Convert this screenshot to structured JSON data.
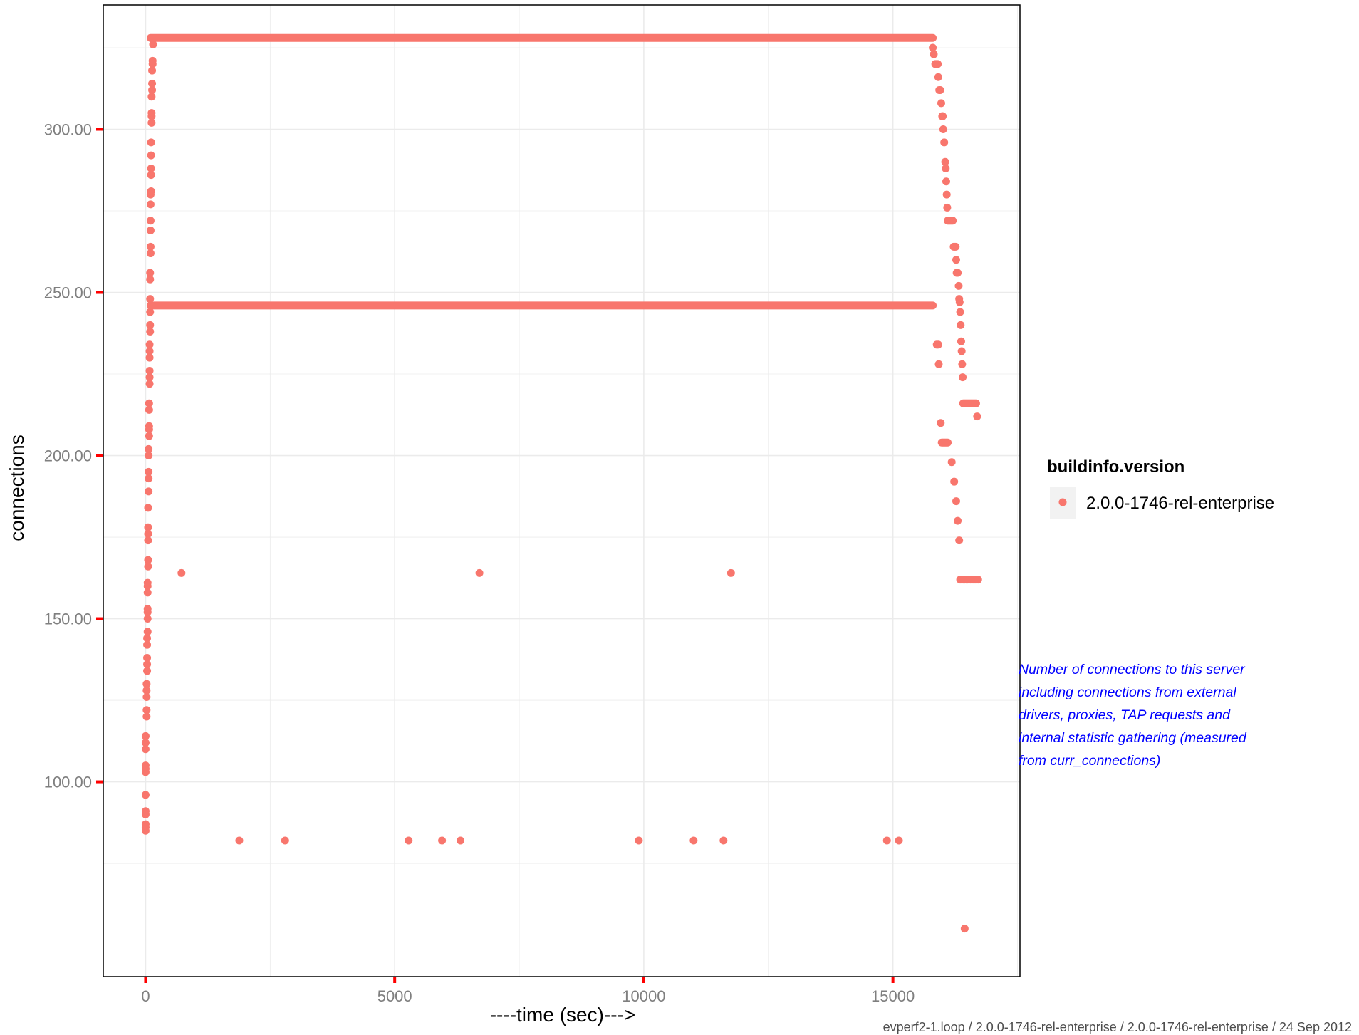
{
  "chart_data": {
    "type": "scatter",
    "xlabel": "----time (sec)--->",
    "ylabel": "connections",
    "xlim": [
      -850,
      17550
    ],
    "ylim": [
      40.3,
      338.1
    ],
    "x_ticks": [
      0,
      5000,
      10000,
      15000
    ],
    "x_tick_labels": [
      "0",
      "5000",
      "10000",
      "15000"
    ],
    "y_ticks": [
      100,
      150,
      200,
      250,
      300
    ],
    "y_tick_labels": [
      "100.00",
      "150.00",
      "200.00",
      "250.00",
      "300.00"
    ],
    "grid": true,
    "legend_position": "right",
    "legend": {
      "title": "buildinfo.version",
      "entries": [
        "2.0.0-1746-rel-enterprise"
      ]
    },
    "series": [
      {
        "name": "2.0.0-1746-rel-enterprise",
        "color": "#f8766d",
        "segments": [
          {
            "x": [
              100,
              15800
            ],
            "y": 328
          },
          {
            "x": [
              100,
              15800
            ],
            "y": 246
          }
        ],
        "points": [
          [
            0,
            85
          ],
          [
            0,
            86
          ],
          [
            0,
            87
          ],
          [
            0,
            90
          ],
          [
            0,
            91
          ],
          [
            0,
            96
          ],
          [
            0,
            103
          ],
          [
            0,
            104
          ],
          [
            0,
            105
          ],
          [
            0,
            110
          ],
          [
            0,
            112
          ],
          [
            0,
            114
          ],
          [
            20,
            120
          ],
          [
            20,
            122
          ],
          [
            20,
            126
          ],
          [
            20,
            128
          ],
          [
            20,
            130
          ],
          [
            30,
            134
          ],
          [
            30,
            136
          ],
          [
            30,
            138
          ],
          [
            30,
            142
          ],
          [
            30,
            144
          ],
          [
            40,
            146
          ],
          [
            40,
            150
          ],
          [
            40,
            152
          ],
          [
            40,
            153
          ],
          [
            40,
            158
          ],
          [
            40,
            160
          ],
          [
            40,
            161
          ],
          [
            50,
            166
          ],
          [
            50,
            168
          ],
          [
            50,
            174
          ],
          [
            50,
            176
          ],
          [
            50,
            178
          ],
          [
            50,
            184
          ],
          [
            60,
            189
          ],
          [
            60,
            193
          ],
          [
            60,
            195
          ],
          [
            60,
            200
          ],
          [
            60,
            202
          ],
          [
            70,
            206
          ],
          [
            70,
            208
          ],
          [
            70,
            209
          ],
          [
            70,
            214
          ],
          [
            70,
            216
          ],
          [
            80,
            222
          ],
          [
            80,
            224
          ],
          [
            80,
            226
          ],
          [
            80,
            230
          ],
          [
            80,
            232
          ],
          [
            80,
            234
          ],
          [
            90,
            238
          ],
          [
            90,
            240
          ],
          [
            90,
            244
          ],
          [
            90,
            248
          ],
          [
            90,
            254
          ],
          [
            90,
            256
          ],
          [
            100,
            262
          ],
          [
            100,
            264
          ],
          [
            100,
            269
          ],
          [
            100,
            272
          ],
          [
            100,
            277
          ],
          [
            100,
            280
          ],
          [
            110,
            281
          ],
          [
            110,
            286
          ],
          [
            110,
            288
          ],
          [
            110,
            292
          ],
          [
            110,
            296
          ],
          [
            120,
            302
          ],
          [
            120,
            304
          ],
          [
            120,
            305
          ],
          [
            120,
            310
          ],
          [
            130,
            312
          ],
          [
            130,
            314
          ],
          [
            130,
            318
          ],
          [
            140,
            320
          ],
          [
            140,
            321
          ],
          [
            150,
            326
          ],
          [
            720,
            164
          ],
          [
            1880,
            82
          ],
          [
            2800,
            82
          ],
          [
            5280,
            82
          ],
          [
            5950,
            82
          ],
          [
            6320,
            82
          ],
          [
            6700,
            164
          ],
          [
            9900,
            82
          ],
          [
            11000,
            82
          ],
          [
            11600,
            82
          ],
          [
            11750,
            164
          ],
          [
            14880,
            82
          ],
          [
            15120,
            82
          ],
          [
            15800,
            325
          ],
          [
            15820,
            323
          ],
          [
            15850,
            320
          ],
          [
            15870,
            320
          ],
          [
            15900,
            320
          ],
          [
            15910,
            316
          ],
          [
            15930,
            312
          ],
          [
            15950,
            312
          ],
          [
            15970,
            308
          ],
          [
            15990,
            304
          ],
          [
            16000,
            304
          ],
          [
            16010,
            300
          ],
          [
            16030,
            296
          ],
          [
            16050,
            290
          ],
          [
            16060,
            288
          ],
          [
            16070,
            284
          ],
          [
            16080,
            280
          ],
          [
            16090,
            276
          ],
          [
            16100,
            272
          ],
          [
            16120,
            272
          ],
          [
            16140,
            272
          ],
          [
            16160,
            272
          ],
          [
            16180,
            272
          ],
          [
            16200,
            272
          ],
          [
            16220,
            264
          ],
          [
            16240,
            264
          ],
          [
            16260,
            264
          ],
          [
            16270,
            260
          ],
          [
            16280,
            256
          ],
          [
            16300,
            256
          ],
          [
            16320,
            252
          ],
          [
            16330,
            248
          ],
          [
            16340,
            247
          ],
          [
            16350,
            244
          ],
          [
            16360,
            240
          ],
          [
            16370,
            235
          ],
          [
            16380,
            232
          ],
          [
            16390,
            228
          ],
          [
            16400,
            224
          ],
          [
            16410,
            216
          ],
          [
            16430,
            216
          ],
          [
            16450,
            216
          ],
          [
            16470,
            216
          ],
          [
            16490,
            216
          ],
          [
            16510,
            216
          ],
          [
            16530,
            216
          ],
          [
            16550,
            216
          ],
          [
            16570,
            216
          ],
          [
            16590,
            216
          ],
          [
            16610,
            216
          ],
          [
            16630,
            216
          ],
          [
            16650,
            216
          ],
          [
            16670,
            216
          ],
          [
            16690,
            212
          ],
          [
            15880,
            234
          ],
          [
            15910,
            234
          ],
          [
            15920,
            228
          ],
          [
            15960,
            210
          ],
          [
            15980,
            204
          ],
          [
            16000,
            204
          ],
          [
            16020,
            204
          ],
          [
            16040,
            204
          ],
          [
            16060,
            204
          ],
          [
            16080,
            204
          ],
          [
            16100,
            204
          ],
          [
            16180,
            198
          ],
          [
            16230,
            192
          ],
          [
            16270,
            186
          ],
          [
            16300,
            180
          ],
          [
            16330,
            174
          ],
          [
            16350,
            162
          ],
          [
            16380,
            162
          ],
          [
            16410,
            162
          ],
          [
            16440,
            162
          ],
          [
            16470,
            162
          ],
          [
            16500,
            162
          ],
          [
            16530,
            162
          ],
          [
            16560,
            162
          ],
          [
            16590,
            162
          ],
          [
            16620,
            162
          ],
          [
            16650,
            162
          ],
          [
            16680,
            162
          ],
          [
            16710,
            162
          ],
          [
            16440,
            55
          ]
        ]
      }
    ],
    "annotation": "Number of connections to this server including connections from external drivers, proxies, TAP requests and internal statistic gathering (measured from curr_connections)"
  },
  "note_lines": [
    "Number of connections to this server",
    "including connections from external",
    "drivers, proxies, TAP requests and",
    "internal statistic gathering (measured",
    "from curr_connections)"
  ],
  "footer": "evperf2-1.loop / 2.0.0-1746-rel-enterprise / 2.0.0-1746-rel-enterprise / 24 Sep 2012",
  "colors": {
    "point": "#f8766d",
    "axis_tick": "#ff0000",
    "note": "#0000ff",
    "grid": "#ebebeb"
  }
}
